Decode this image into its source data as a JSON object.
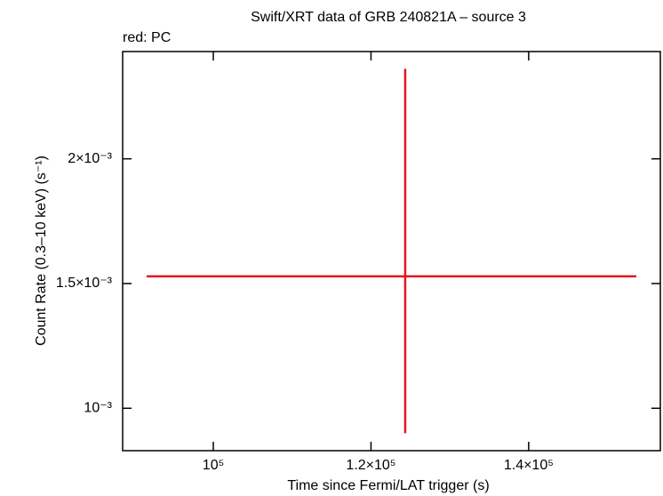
{
  "chart_data": {
    "type": "errorbar",
    "title": "Swift/XRT data of GRB 240821A – source 3",
    "subtitle": "red: PC",
    "x_label": "Time since Fermi/LAT trigger (s)",
    "y_label": "Count Rate (0.3–10 keV) (s⁻¹)",
    "xlim": [
      88500,
      156700
    ],
    "ylim": [
      0.00083,
      0.00243
    ],
    "xticks": [
      {
        "value": 100000,
        "label": "10⁵"
      },
      {
        "value": 120000,
        "label": "1.2×10⁵"
      },
      {
        "value": 140000,
        "label": "1.4×10⁵"
      }
    ],
    "yticks": [
      {
        "value": 0.001,
        "label": "10⁻³"
      },
      {
        "value": 0.0015,
        "label": "1.5×10⁻³"
      },
      {
        "value": 0.002,
        "label": "2×10⁻³"
      }
    ],
    "series": [
      {
        "color": "#e8141c",
        "x": [
          124340
        ],
        "x_low": [
          91550
        ],
        "x_high": [
          153650
        ],
        "y": [
          0.001529
        ],
        "y_low": [
          0.0009
        ],
        "y_high": [
          0.002361
        ]
      }
    ]
  }
}
